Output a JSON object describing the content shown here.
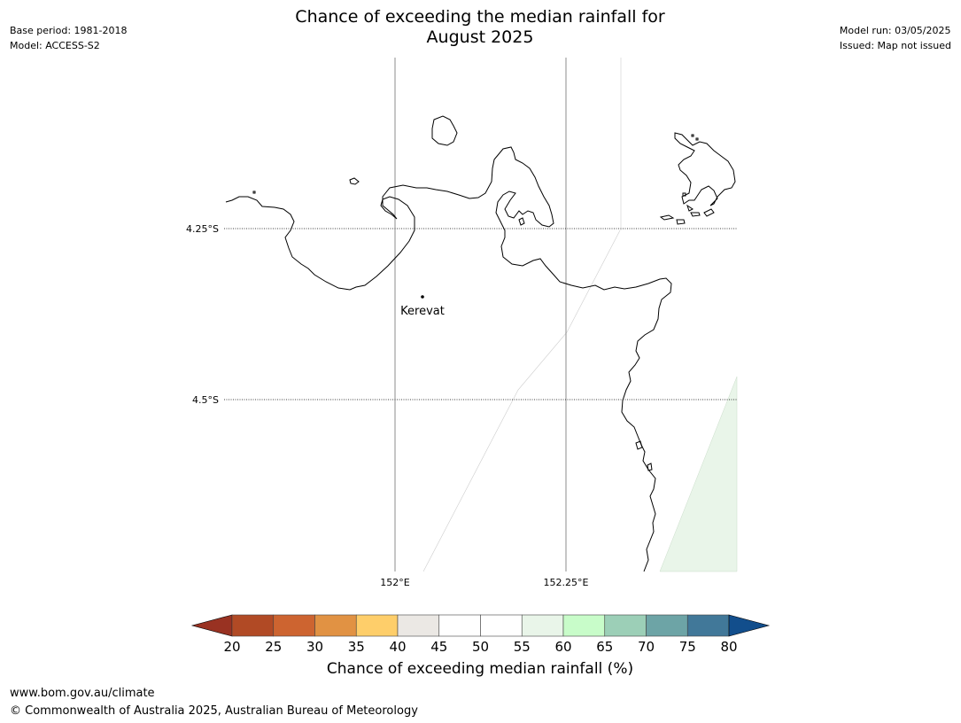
{
  "title_line1": "Chance of exceeding the median rainfall for",
  "title_line2": "August 2025",
  "base_period": "Base period: 1981-2018",
  "model": "Model: ACCESS-S2",
  "model_run": "Model run: 03/05/2025",
  "issued": "Issued: Map not issued",
  "map": {
    "lat_labels": [
      "4.25°S",
      "4.5°S"
    ],
    "lon_labels": [
      "152°E",
      "152.25°E"
    ],
    "town": "Kerevat",
    "colors": {
      "coast": "#000000",
      "grid": "#808080",
      "shade_55_60": "#e9f5e9"
    }
  },
  "colorbar": {
    "title": "Chance of exceeding median rainfall (%)",
    "ticks": [
      "20",
      "25",
      "30",
      "35",
      "40",
      "45",
      "50",
      "55",
      "60",
      "65",
      "70",
      "75",
      "80"
    ],
    "low_extend_color": "#993222",
    "high_extend_color": "#124e8c",
    "bins": [
      {
        "range": "20-25",
        "color": "#b14a25"
      },
      {
        "range": "25-30",
        "color": "#cd6430"
      },
      {
        "range": "30-35",
        "color": "#e19243"
      },
      {
        "range": "35-40",
        "color": "#fece6a"
      },
      {
        "range": "40-45",
        "color": "#ebe8e4"
      },
      {
        "range": "45-50",
        "color": "#ffffff"
      },
      {
        "range": "50-55",
        "color": "#ffffff"
      },
      {
        "range": "55-60",
        "color": "#e9f5e9"
      },
      {
        "range": "60-65",
        "color": "#c8fcc9"
      },
      {
        "range": "65-70",
        "color": "#9ccfb7"
      },
      {
        "range": "70-75",
        "color": "#6da4a6"
      },
      {
        "range": "75-80",
        "color": "#417899"
      }
    ]
  },
  "footer": {
    "url": "www.bom.gov.au/climate",
    "copyright": "© Commonwealth of Australia 2025, Australian Bureau of Meteorology"
  }
}
